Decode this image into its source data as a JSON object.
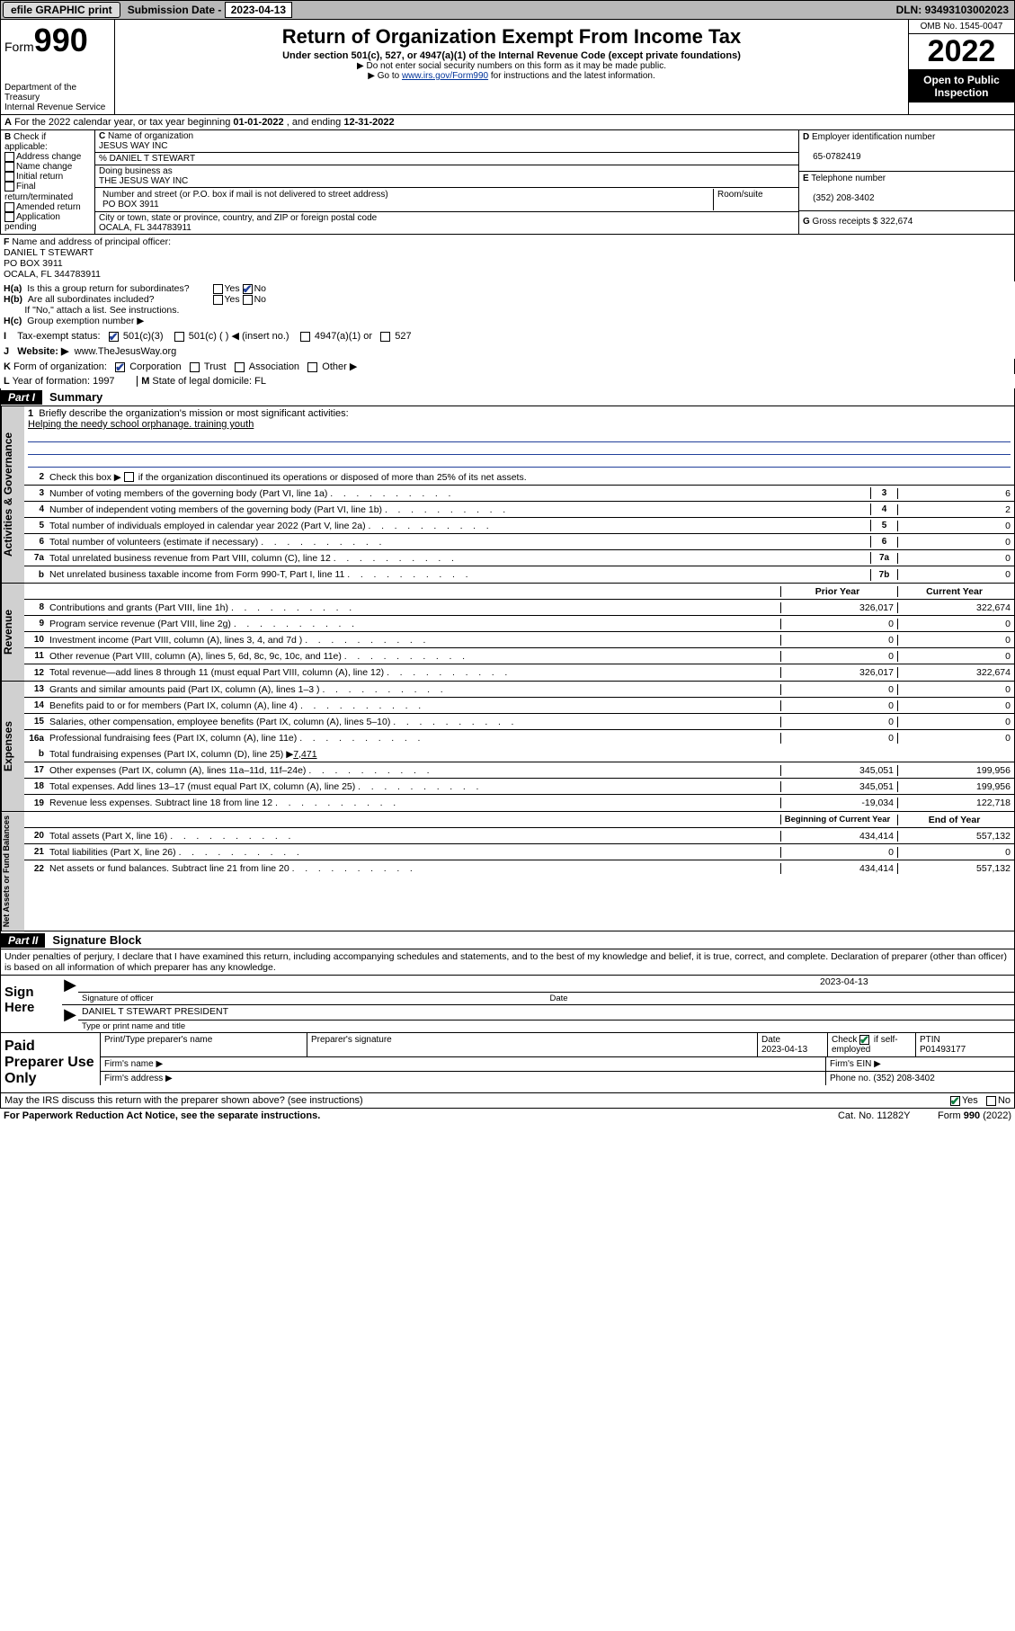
{
  "topbar": {
    "efile": "efile GRAPHIC print",
    "submission_label": "Submission Date - ",
    "submission_date": "2023-04-13",
    "dln_label": "DLN: ",
    "dln": "93493103002023"
  },
  "header": {
    "form_label": "Form",
    "form_number": "990",
    "title": "Return of Organization Exempt From Income Tax",
    "subtitle": "Under section 501(c), 527, or 4947(a)(1) of the Internal Revenue Code (except private foundations)",
    "note1": "▶ Do not enter social security numbers on this form as it may be made public.",
    "note2_pre": "▶ Go to ",
    "note2_link": "www.irs.gov/Form990",
    "note2_post": " for instructions and the latest information.",
    "dept": "Department of the Treasury",
    "irs": "Internal Revenue Service",
    "omb": "OMB No. 1545-0047",
    "tax_year": "2022",
    "open_public": "Open to Public Inspection"
  },
  "rowA": {
    "label": "A",
    "text1": " For the 2022 calendar year, or tax year beginning ",
    "begin": "01-01-2022",
    "text2": "   , and ending ",
    "end": "12-31-2022"
  },
  "sectionB": {
    "label": "B",
    "check_label": " Check if applicable:",
    "items": [
      "Address change",
      "Name change",
      "Initial return",
      "Final return/terminated",
      "Amended return",
      "Application pending"
    ]
  },
  "sectionC": {
    "label": "C",
    "name_label": " Name of organization",
    "org_name": "JESUS WAY INC",
    "care_of": "% DANIEL T STEWART",
    "dba_label": "Doing business as",
    "dba": "THE JESUS WAY INC",
    "addr_label": "Number and street (or P.O. box if mail is not delivered to street address)",
    "addr": "PO BOX 3911",
    "room_label": "Room/suite",
    "city_label": "City or town, state or province, country, and ZIP or foreign postal code",
    "city": "OCALA, FL  344783911"
  },
  "sectionD": {
    "label": "D",
    "ein_label": " Employer identification number",
    "ein": "65-0782419",
    "e_label": "E",
    "tel_label": " Telephone number",
    "tel": "(352) 208-3402",
    "g_label": "G",
    "gross_label": " Gross receipts $ ",
    "gross": "322,674"
  },
  "sectionF": {
    "label": "F",
    "name_label": " Name and address of principal officer:",
    "name": "DANIEL T STEWART",
    "addr1": "PO BOX 3911",
    "addr2": "OCALA, FL  344783911"
  },
  "sectionH": {
    "ha_label": "H(a)",
    "ha_text": "Is this a group return for subordinates?",
    "hb_label": "H(b)",
    "hb_text": "Are all subordinates included?",
    "hb_note": "If \"No,\" attach a list. See instructions.",
    "hc_label": "H(c)",
    "hc_text": "Group exemption number ▶",
    "yes": "Yes",
    "no": "No"
  },
  "rowI": {
    "label": "I",
    "text": "Tax-exempt status:",
    "opt1": "501(c)(3)",
    "opt2": "501(c) (    ) ◀ (insert no.)",
    "opt3": "4947(a)(1) or",
    "opt4": "527"
  },
  "rowJ": {
    "label": "J",
    "text": "Website: ▶",
    "url": "www.TheJesusWay.org"
  },
  "rowK": {
    "label": "K",
    "text": " Form of organization:",
    "opts": [
      "Corporation",
      "Trust",
      "Association",
      "Other ▶"
    ]
  },
  "rowL": {
    "label": "L",
    "text": " Year of formation: ",
    "year": "1997",
    "m_label": "M",
    "m_text": " State of legal domicile: ",
    "state": "FL"
  },
  "part1": {
    "hdr": "Part I",
    "title": "Summary",
    "tab_gov": "Activities & Governance",
    "tab_rev": "Revenue",
    "tab_exp": "Expenses",
    "tab_net": "Net Assets or Fund Balances",
    "line1_label": "1",
    "line1_text": "Briefly describe the organization's mission or most significant activities:",
    "line1_mission": "Helping the needy school orphanage. training youth",
    "line2_label": "2",
    "line2_text": "Check this box ▶        if the organization discontinued its operations or disposed of more than 25% of its net assets.",
    "gov_lines": [
      {
        "n": "3",
        "t": "Number of voting members of the governing body (Part VI, line 1a)",
        "box": "3",
        "v": "6"
      },
      {
        "n": "4",
        "t": "Number of independent voting members of the governing body (Part VI, line 1b)",
        "box": "4",
        "v": "2"
      },
      {
        "n": "5",
        "t": "Total number of individuals employed in calendar year 2022 (Part V, line 2a)",
        "box": "5",
        "v": "0"
      },
      {
        "n": "6",
        "t": "Total number of volunteers (estimate if necessary)",
        "box": "6",
        "v": "0"
      },
      {
        "n": "7a",
        "t": "Total unrelated business revenue from Part VIII, column (C), line 12",
        "box": "7a",
        "v": "0"
      },
      {
        "n": "b",
        "t": "Net unrelated business taxable income from Form 990-T, Part I, line 11",
        "box": "7b",
        "v": "0"
      }
    ],
    "col_prior": "Prior Year",
    "col_current": "Current Year",
    "rev_lines": [
      {
        "n": "8",
        "t": "Contributions and grants (Part VIII, line 1h)",
        "p": "326,017",
        "c": "322,674"
      },
      {
        "n": "9",
        "t": "Program service revenue (Part VIII, line 2g)",
        "p": "0",
        "c": "0"
      },
      {
        "n": "10",
        "t": "Investment income (Part VIII, column (A), lines 3, 4, and 7d )",
        "p": "0",
        "c": "0"
      },
      {
        "n": "11",
        "t": "Other revenue (Part VIII, column (A), lines 5, 6d, 8c, 9c, 10c, and 11e)",
        "p": "0",
        "c": "0"
      },
      {
        "n": "12",
        "t": "Total revenue—add lines 8 through 11 (must equal Part VIII, column (A), line 12)",
        "p": "326,017",
        "c": "322,674"
      }
    ],
    "exp_lines": [
      {
        "n": "13",
        "t": "Grants and similar amounts paid (Part IX, column (A), lines 1–3 )",
        "p": "0",
        "c": "0"
      },
      {
        "n": "14",
        "t": "Benefits paid to or for members (Part IX, column (A), line 4)",
        "p": "0",
        "c": "0"
      },
      {
        "n": "15",
        "t": "Salaries, other compensation, employee benefits (Part IX, column (A), lines 5–10)",
        "p": "0",
        "c": "0"
      },
      {
        "n": "16a",
        "t": "Professional fundraising fees (Part IX, column (A), line 11e)",
        "p": "0",
        "c": "0"
      }
    ],
    "exp_16b": {
      "n": "b",
      "t": "Total fundraising expenses (Part IX, column (D), line 25) ▶",
      "amt": "7,471"
    },
    "exp_lines2": [
      {
        "n": "17",
        "t": "Other expenses (Part IX, column (A), lines 11a–11d, 11f–24e)",
        "p": "345,051",
        "c": "199,956"
      },
      {
        "n": "18",
        "t": "Total expenses. Add lines 13–17 (must equal Part IX, column (A), line 25)",
        "p": "345,051",
        "c": "199,956"
      },
      {
        "n": "19",
        "t": "Revenue less expenses. Subtract line 18 from line 12",
        "p": "-19,034",
        "c": "122,718"
      }
    ],
    "col_begin": "Beginning of Current Year",
    "col_end": "End of Year",
    "net_lines": [
      {
        "n": "20",
        "t": "Total assets (Part X, line 16)",
        "p": "434,414",
        "c": "557,132"
      },
      {
        "n": "21",
        "t": "Total liabilities (Part X, line 26)",
        "p": "0",
        "c": "0"
      },
      {
        "n": "22",
        "t": "Net assets or fund balances. Subtract line 21 from line 20",
        "p": "434,414",
        "c": "557,132"
      }
    ]
  },
  "part2": {
    "hdr": "Part II",
    "title": "Signature Block",
    "perjury": "Under penalties of perjury, I declare that I have examined this return, including accompanying schedules and statements, and to the best of my knowledge and belief, it is true, correct, and complete. Declaration of preparer (other than officer) is based on all information of which preparer has any knowledge.",
    "sign_here": "Sign Here",
    "sig_officer": "Signature of officer",
    "sig_date_label": "Date",
    "sig_date": "2023-04-13",
    "officer_name": "DANIEL T STEWART  PRESIDENT",
    "type_name": "Type or print name and title",
    "paid_prep": "Paid Preparer Use Only",
    "pp_name_label": "Print/Type preparer's name",
    "pp_sig_label": "Preparer's signature",
    "pp_date_label": "Date",
    "pp_date": "2023-04-13",
    "pp_check_label": "Check",
    "pp_self_emp": "if self-employed",
    "pp_ptin_label": "PTIN",
    "pp_ptin": "P01493177",
    "firm_name_label": "Firm's name    ▶",
    "firm_ein_label": "Firm's EIN ▶",
    "firm_addr_label": "Firm's address ▶",
    "firm_phone_label": "Phone no. ",
    "firm_phone": "(352) 208-3402",
    "may_irs": "May the IRS discuss this return with the preparer shown above? (see instructions)",
    "yes": "Yes",
    "no": "No"
  },
  "footer": {
    "paperwork": "For Paperwork Reduction Act Notice, see the separate instructions.",
    "catno": "Cat. No. 11282Y",
    "formno": "Form 990 (2022)"
  },
  "colors": {
    "link": "#003399",
    "check_blue": "#21409a",
    "check_green": "#0b7d3e",
    "gray_bg": "#b8b8b8",
    "shade": "#d9d9d9"
  }
}
